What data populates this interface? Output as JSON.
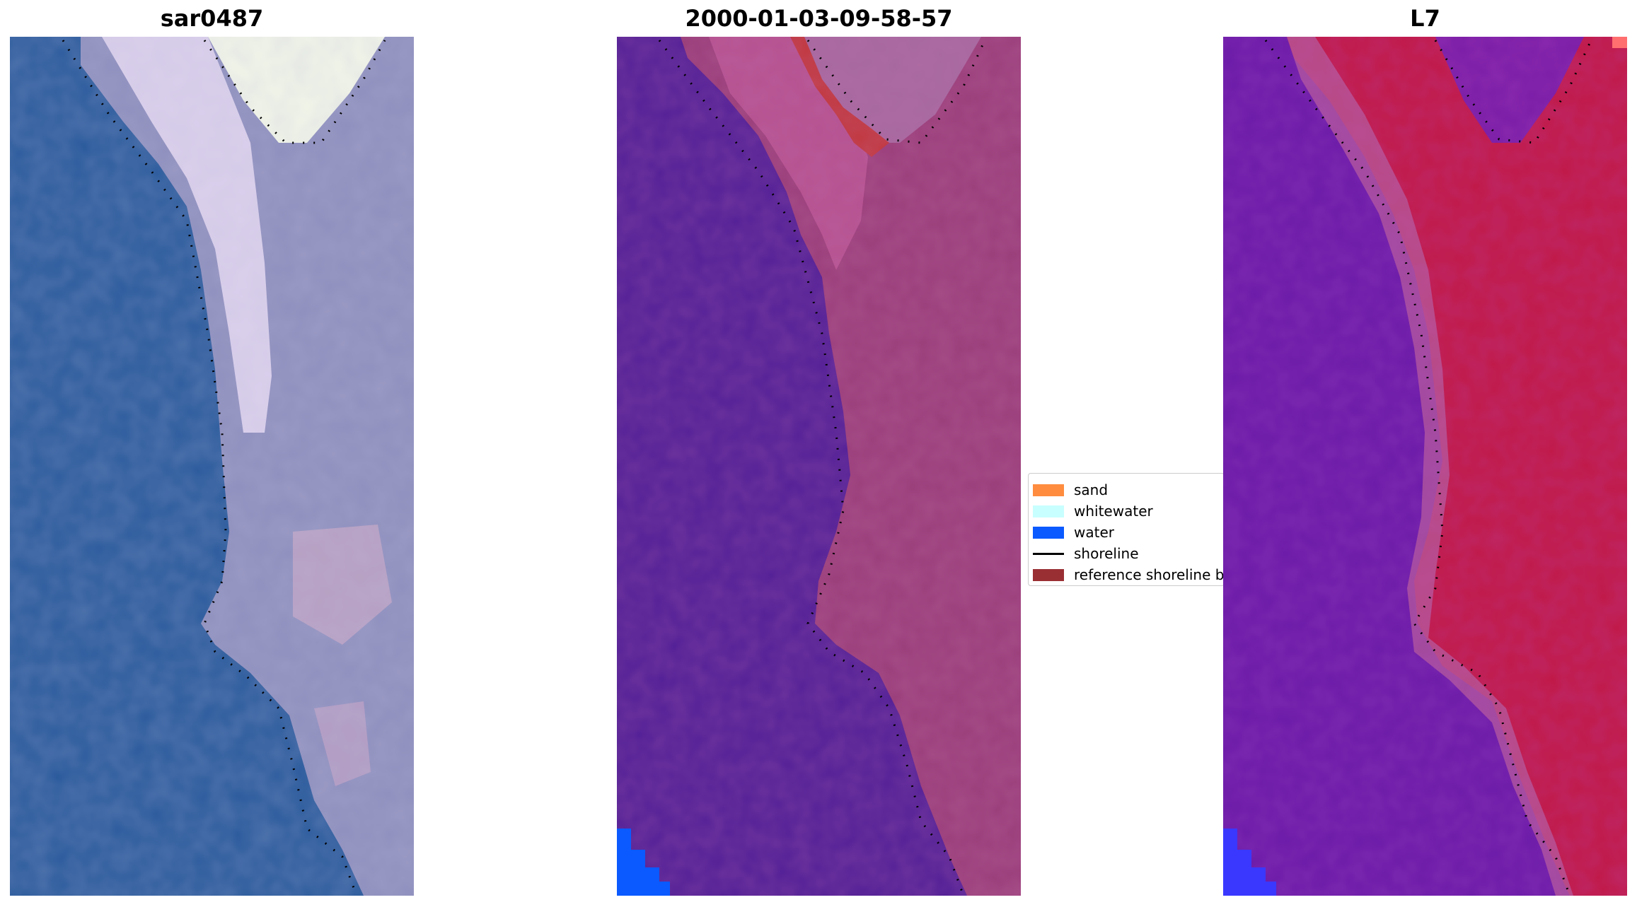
{
  "panels": [
    {
      "title": "sar0487",
      "kind": "rgb"
    },
    {
      "title": "2000-01-03-09-58-57",
      "kind": "classified"
    },
    {
      "title": "L7",
      "kind": "index"
    }
  ],
  "legend": {
    "entries": [
      {
        "label": "sand",
        "type": "patch",
        "color": "#ff8c3f"
      },
      {
        "label": "whitewater",
        "type": "patch",
        "color": "#c8ffff"
      },
      {
        "label": "water",
        "type": "patch",
        "color": "#0a5aff"
      },
      {
        "label": "shoreline",
        "type": "line",
        "color": "#000000"
      },
      {
        "label": "reference shoreline buffer",
        "type": "patch",
        "color": "#9a2f33"
      }
    ]
  },
  "colors": {
    "water_rgb": "#2a5a9c",
    "land_rgb": "#8f8fbe",
    "whitewater_rgb": "#f2ecff",
    "water_class": "#521f96",
    "land_class": "#9a3e7a",
    "buffer_class": "#c0373e",
    "water_index": "#6a1aa8",
    "land_index": "#c01846"
  }
}
